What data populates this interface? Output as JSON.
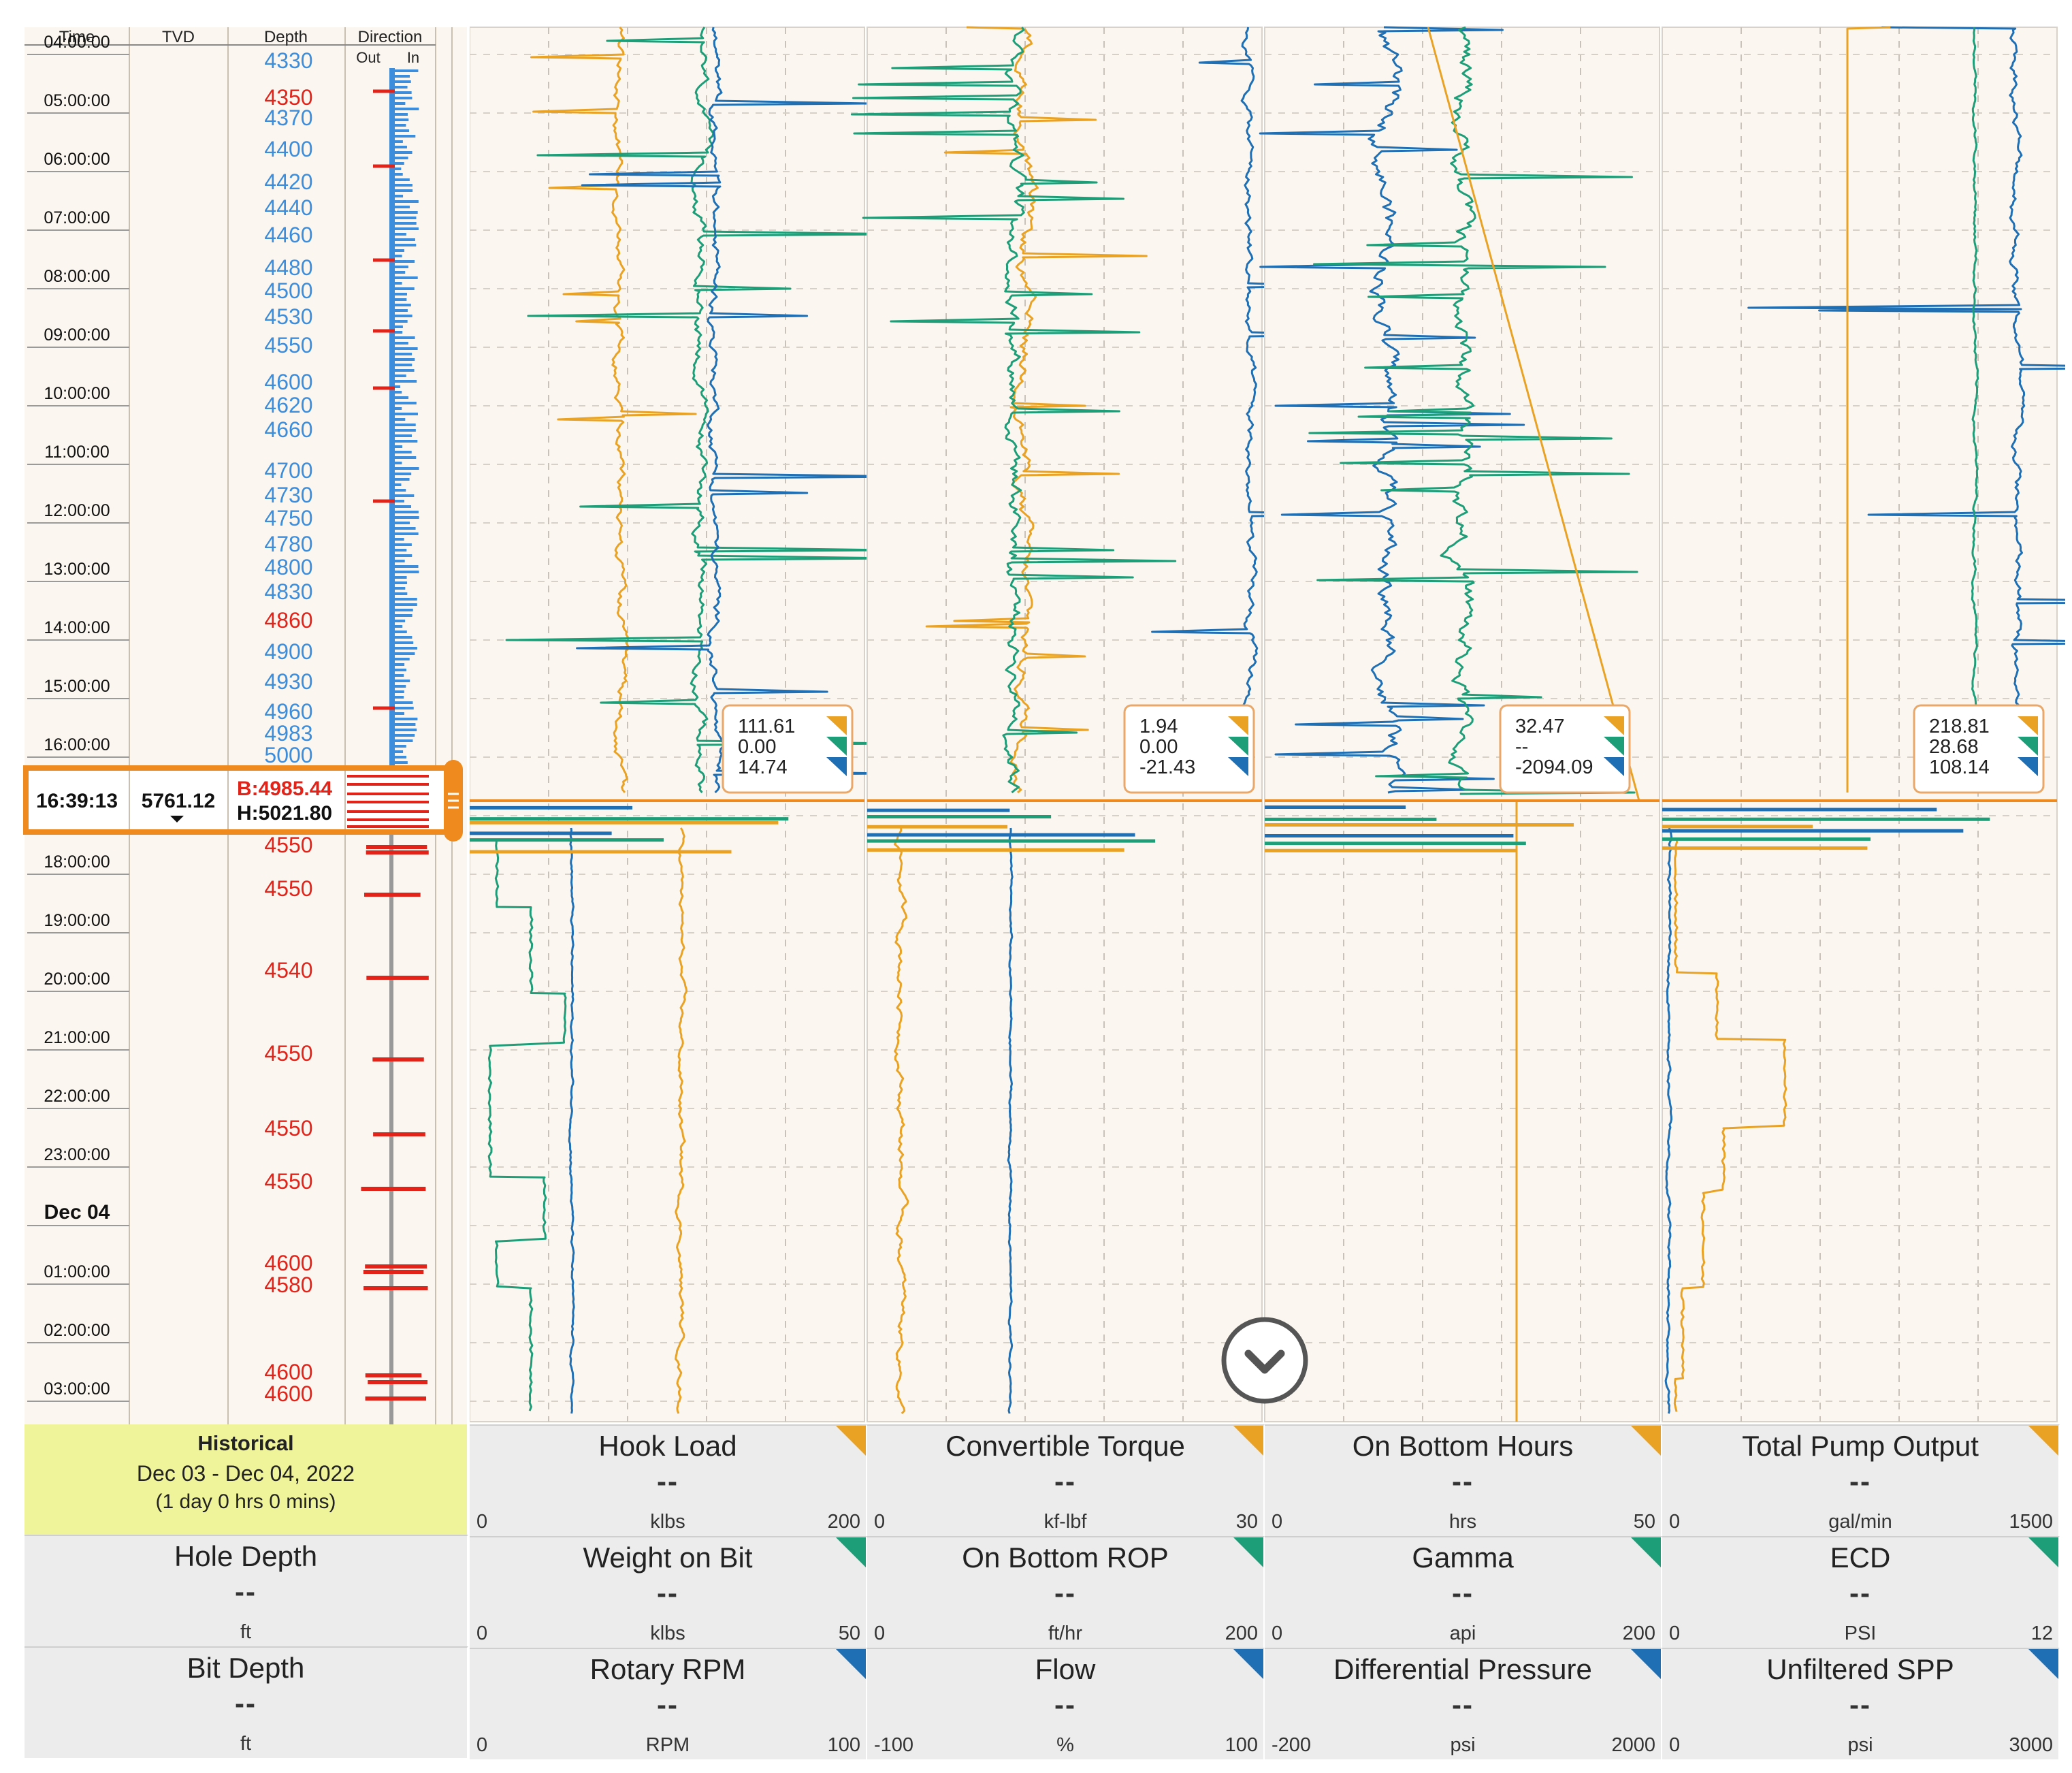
{
  "colors": {
    "orange": "#E9A224",
    "green": "#1E9E78",
    "blue": "#1F6FB5",
    "red": "#E2231A",
    "depth_blue": "#3C8DDC",
    "cursor": "#EE8A1E",
    "bg": "#FBF7F0"
  },
  "left_header": {
    "time": "Time",
    "tvd": "TVD",
    "depth": "Depth",
    "direction": "Direction",
    "out": "Out",
    "in": "In"
  },
  "times": [
    "04:00:00",
    "05:00:00",
    "06:00:00",
    "07:00:00",
    "08:00:00",
    "09:00:00",
    "10:00:00",
    "11:00:00",
    "12:00:00",
    "13:00:00",
    "14:00:00",
    "15:00:00",
    "16:00:00",
    "18:00:00",
    "19:00:00",
    "20:00:00",
    "21:00:00",
    "22:00:00",
    "23:00:00",
    "Dec 04",
    "01:00:00",
    "02:00:00",
    "03:00:00"
  ],
  "depth_upper": [
    {
      "v": "4330",
      "c": "blue"
    },
    {
      "v": "4350",
      "c": "red"
    },
    {
      "v": "4370",
      "c": "blue"
    },
    {
      "v": "4400",
      "c": "blue"
    },
    {
      "v": "4420",
      "c": "blue"
    },
    {
      "v": "4440",
      "c": "blue"
    },
    {
      "v": "4460",
      "c": "blue"
    },
    {
      "v": "4480",
      "c": "blue"
    },
    {
      "v": "4500",
      "c": "blue"
    },
    {
      "v": "4530",
      "c": "blue"
    },
    {
      "v": "4550",
      "c": "blue"
    },
    {
      "v": "4600",
      "c": "blue"
    },
    {
      "v": "4620",
      "c": "blue"
    },
    {
      "v": "4660",
      "c": "blue"
    },
    {
      "v": "4700",
      "c": "blue"
    },
    {
      "v": "4730",
      "c": "blue"
    },
    {
      "v": "4750",
      "c": "blue"
    },
    {
      "v": "4780",
      "c": "blue"
    },
    {
      "v": "4800",
      "c": "blue"
    },
    {
      "v": "4830",
      "c": "blue"
    },
    {
      "v": "4860",
      "c": "red"
    },
    {
      "v": "4900",
      "c": "blue"
    },
    {
      "v": "4930",
      "c": "blue"
    },
    {
      "v": "4960",
      "c": "blue"
    },
    {
      "v": "4983",
      "c": "blue"
    },
    {
      "v": "5000",
      "c": "blue"
    }
  ],
  "depth_lower": [
    "4550",
    "4550",
    "4540",
    "4550",
    "4550",
    "4550",
    "4600",
    "4580",
    "4600",
    "4600"
  ],
  "cursor": {
    "time": "16:39:13",
    "tvd": "5761.12",
    "bit": "B:4985.44",
    "hole": "H:5021.80"
  },
  "tooltips": [
    [
      "111.61",
      "0.00",
      "14.74"
    ],
    [
      "1.94",
      "0.00",
      "-21.43"
    ],
    [
      "32.47",
      "--",
      "-2094.09"
    ],
    [
      "218.81",
      "28.68",
      "108.14"
    ]
  ],
  "historical": {
    "label": "Historical",
    "range": "Dec 03 - Dec 04, 2022",
    "duration": "(1 day 0 hrs 0 mins)"
  },
  "left_boxes": [
    {
      "title": "Hole Depth",
      "value": "--",
      "unit": "ft"
    },
    {
      "title": "Bit Depth",
      "value": "--",
      "unit": "ft"
    }
  ],
  "track_boxes": [
    [
      {
        "title": "Hook Load",
        "value": "--",
        "unit": "klbs",
        "min": "0",
        "max": "200",
        "color": "orange"
      },
      {
        "title": "Weight on Bit",
        "value": "--",
        "unit": "klbs",
        "min": "0",
        "max": "50",
        "color": "green"
      },
      {
        "title": "Rotary RPM",
        "value": "--",
        "unit": "RPM",
        "min": "0",
        "max": "100",
        "color": "blue"
      }
    ],
    [
      {
        "title": "Convertible Torque",
        "value": "--",
        "unit": "kf-lbf",
        "min": "0",
        "max": "30",
        "color": "orange"
      },
      {
        "title": "On Bottom ROP",
        "value": "--",
        "unit": "ft/hr",
        "min": "0",
        "max": "200",
        "color": "green"
      },
      {
        "title": "Flow",
        "value": "--",
        "unit": "%",
        "min": "-100",
        "max": "100",
        "color": "blue"
      }
    ],
    [
      {
        "title": "On Bottom Hours",
        "value": "--",
        "unit": "hrs",
        "min": "0",
        "max": "50",
        "color": "orange"
      },
      {
        "title": "Gamma",
        "value": "--",
        "unit": "api",
        "min": "0",
        "max": "200",
        "color": "green"
      },
      {
        "title": "Differential Pressure",
        "value": "--",
        "unit": "psi",
        "min": "-200",
        "max": "2000",
        "color": "blue"
      }
    ],
    [
      {
        "title": "Total Pump Output",
        "value": "--",
        "unit": "gal/min",
        "min": "0",
        "max": "1500",
        "color": "orange"
      },
      {
        "title": "ECD",
        "value": "--",
        "unit": "PSI",
        "min": "0",
        "max": "12",
        "color": "green"
      },
      {
        "title": "Unfiltered SPP",
        "value": "--",
        "unit": "psi",
        "min": "0",
        "max": "3000",
        "color": "blue"
      }
    ]
  ]
}
